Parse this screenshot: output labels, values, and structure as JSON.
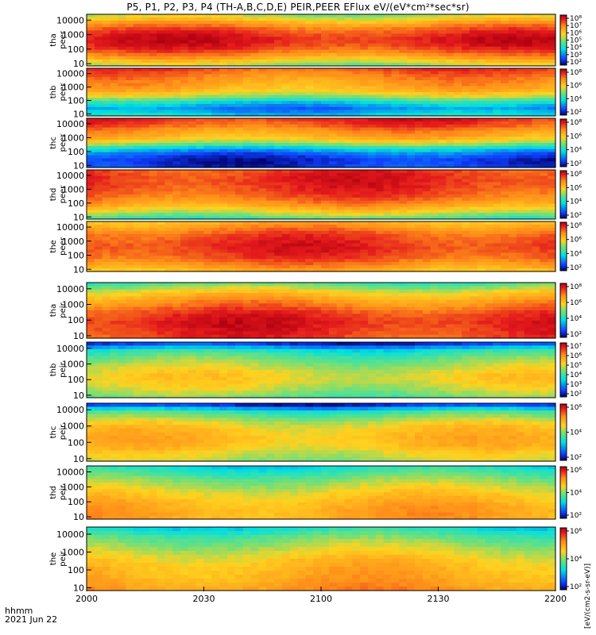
{
  "title": "P5, P1, P2, P3, P4 (TH-A,B,C,D,E) PEIR,PEER EFlux eV/(eV*cm²*sec*sr)",
  "footer": {
    "row1": "hhmm",
    "row2": "2021 Jun 22"
  },
  "colorbar_unit": "[eV/(cm2-s-sr-eV)]",
  "colors": {
    "red": "#e41a1c",
    "orange": "#ff8c1a",
    "yellow": "#ffd21f",
    "green": "#6ee07a",
    "cyan": "#00e0e0",
    "blue": "#1040ff",
    "black": "#000000"
  },
  "chart_data": {
    "type": "heatmap",
    "x_ticks": [
      "2000",
      "2030",
      "2100",
      "2130",
      "2200"
    ],
    "y_ticks": [
      "10000",
      "1000",
      "100",
      "10"
    ],
    "ylim": [
      7,
      25000
    ],
    "yscale": "log",
    "panels": [
      {
        "label": [
          "tha",
          "peer"
        ],
        "cb_ticks": [
          "10⁸",
          "10⁷",
          "10⁶",
          "10⁵",
          "10⁴",
          "10³",
          "10²"
        ],
        "profile": [
          0.55,
          0.7,
          0.82,
          0.9,
          0.93,
          0.9,
          0.82,
          0.7,
          0.55
        ]
      },
      {
        "label": [
          "thb",
          "peer"
        ],
        "cb_ticks": [
          "10⁸",
          "10⁶",
          "10⁴",
          "10²"
        ],
        "profile": [
          0.85,
          0.8,
          0.75,
          0.72,
          0.65,
          0.5,
          0.3,
          0.2,
          0.3
        ]
      },
      {
        "label": [
          "thc",
          "peer"
        ],
        "cb_ticks": [
          "10⁸",
          "10⁶",
          "10⁴",
          "10²"
        ],
        "profile": [
          0.9,
          0.85,
          0.75,
          0.7,
          0.55,
          0.3,
          0.15,
          0.08,
          0.1
        ]
      },
      {
        "label": [
          "thd",
          "peer"
        ],
        "cb_ticks": [
          "10⁸",
          "10⁶",
          "10⁴",
          "10²"
        ],
        "profile": [
          0.88,
          0.9,
          0.9,
          0.88,
          0.85,
          0.8,
          0.72,
          0.6,
          0.45
        ]
      },
      {
        "label": [
          "the",
          "peer"
        ],
        "cb_ticks": [
          "10⁸",
          "10⁶",
          "10⁴",
          "10²"
        ],
        "profile": [
          0.7,
          0.78,
          0.85,
          0.88,
          0.9,
          0.88,
          0.85,
          0.78,
          0.7
        ]
      },
      {
        "label": [
          "tha",
          "peir"
        ],
        "cb_ticks": [
          "10⁸",
          "10⁶",
          "10⁴",
          "10²"
        ],
        "profile": [
          0.45,
          0.6,
          0.7,
          0.78,
          0.85,
          0.9,
          0.92,
          0.9,
          0.88
        ]
      },
      {
        "label": [
          "thb",
          "peir"
        ],
        "cb_ticks": [
          "10⁷",
          "10⁶",
          "10⁵",
          "10⁴",
          "10³",
          "10²"
        ],
        "profile": [
          0.1,
          0.35,
          0.45,
          0.52,
          0.58,
          0.62,
          0.6,
          0.55,
          0.48
        ]
      },
      {
        "label": [
          "thc",
          "peir"
        ],
        "cb_ticks": [
          "10⁶",
          "10⁴",
          "10²"
        ],
        "profile": [
          0.1,
          0.4,
          0.52,
          0.62,
          0.66,
          0.68,
          0.66,
          0.6,
          0.55
        ]
      },
      {
        "label": [
          "thd",
          "peir"
        ],
        "cb_ticks": [
          "10⁶",
          "10⁴",
          "10²"
        ],
        "profile": [
          0.35,
          0.42,
          0.5,
          0.56,
          0.62,
          0.66,
          0.7,
          0.72,
          0.72
        ]
      },
      {
        "label": [
          "the",
          "peir"
        ],
        "cb_ticks": [
          "10⁶",
          "10⁴",
          "10²"
        ],
        "profile": [
          0.35,
          0.45,
          0.52,
          0.58,
          0.64,
          0.68,
          0.7,
          0.72,
          0.75
        ]
      }
    ]
  }
}
